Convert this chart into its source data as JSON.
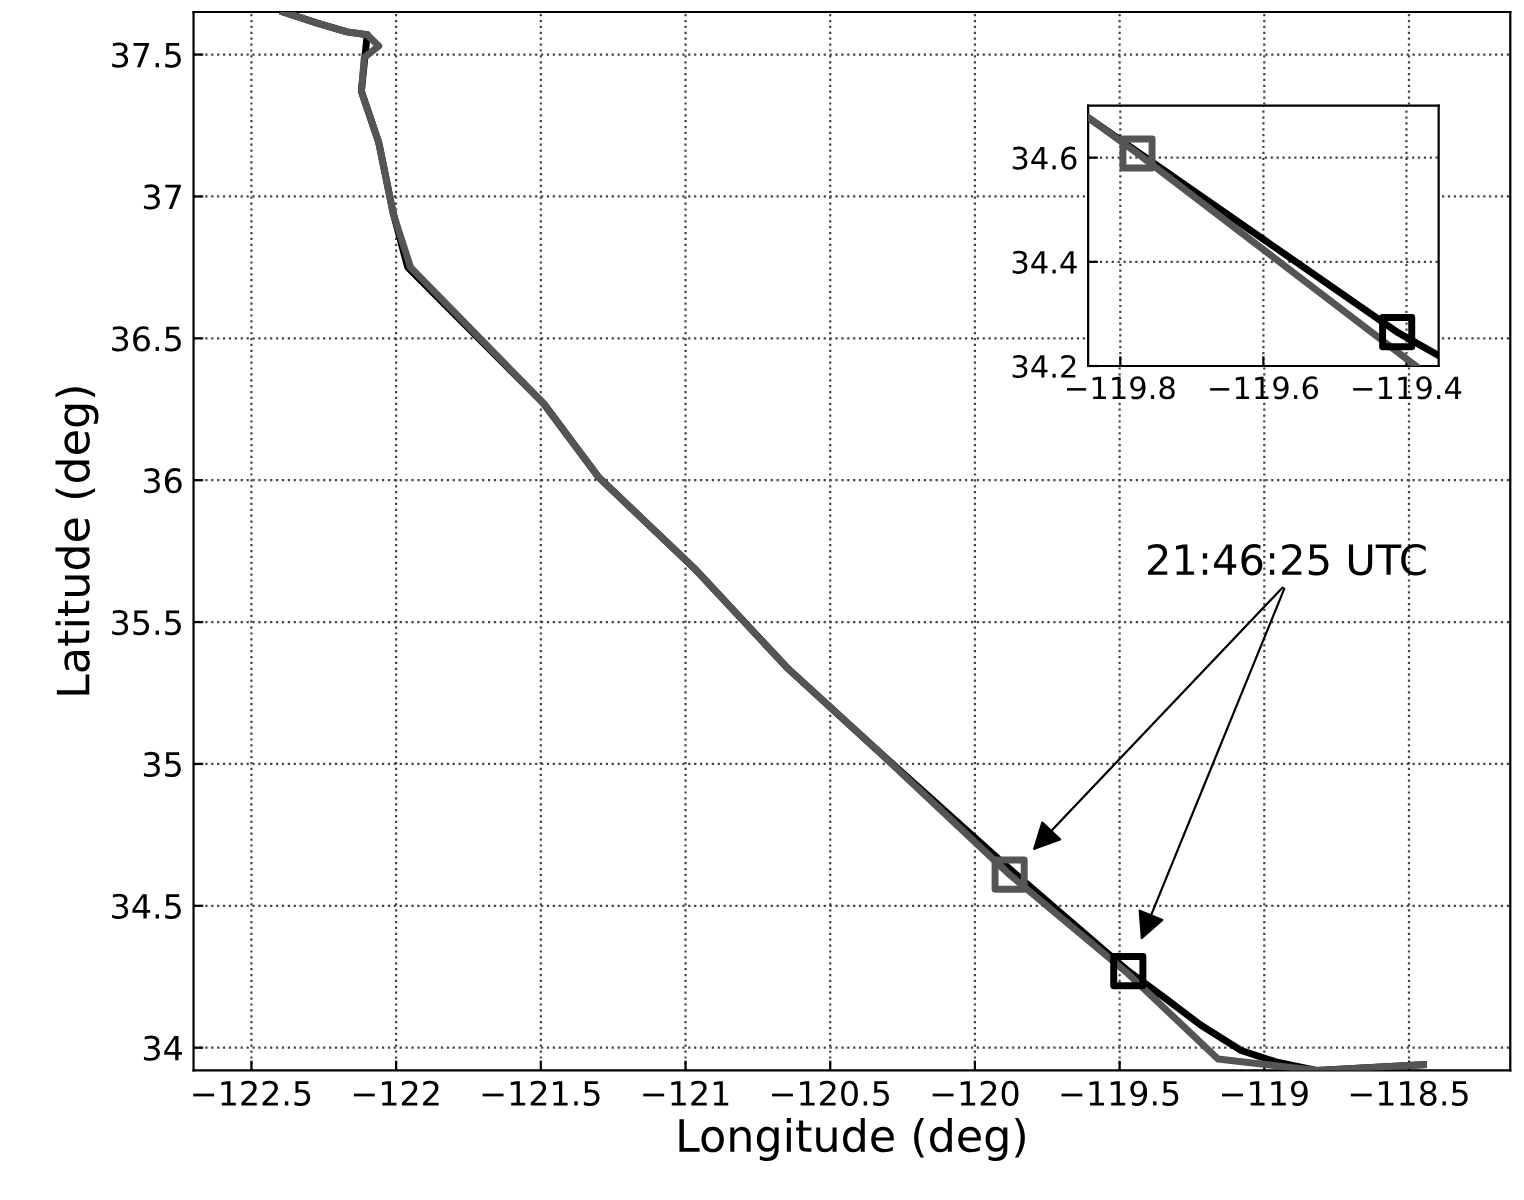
{
  "chart_data": [
    {
      "type": "line",
      "xlabel": "Longitude (deg)",
      "ylabel": "Latitude (deg)",
      "xlim": [
        -122.7,
        -118.15
      ],
      "ylim": [
        33.92,
        37.65
      ],
      "xticks": [
        {
          "value": -122.5,
          "label": "−122.5"
        },
        {
          "value": -122,
          "label": "−122"
        },
        {
          "value": -121.5,
          "label": "−121.5"
        },
        {
          "value": -121,
          "label": "−121"
        },
        {
          "value": -120.5,
          "label": "−120.5"
        },
        {
          "value": -120,
          "label": "−120"
        },
        {
          "value": -119.5,
          "label": "−119.5"
        },
        {
          "value": -119,
          "label": "−119"
        },
        {
          "value": -118.5,
          "label": "−118.5"
        }
      ],
      "yticks": [
        34,
        34.5,
        35,
        35.5,
        36,
        36.5,
        37,
        37.5
      ],
      "grid": true,
      "annotations": [
        "21:46:25 UTC"
      ],
      "series": [
        {
          "type": "line",
          "color": "#000000",
          "marker": "none",
          "x": [
            -122.39,
            -122.27,
            -122.17,
            -122.1,
            -122.12,
            -122.06,
            -122.01,
            -121.96,
            -121.49,
            -121.3,
            -120.97,
            -120.65,
            -120.35,
            -119.88,
            -119.47,
            -119.35,
            -119.22,
            -119.08,
            -118.96,
            -118.82,
            -118.45
          ],
          "values": [
            37.65,
            37.61,
            37.58,
            37.57,
            37.37,
            37.19,
            36.94,
            36.75,
            36.27,
            36.01,
            35.69,
            35.34,
            35.06,
            34.63,
            34.27,
            34.18,
            34.08,
            33.99,
            33.95,
            33.92,
            33.94
          ]
        },
        {
          "type": "line",
          "color": "#555555",
          "marker": "none",
          "x": [
            -122.39,
            -122.27,
            -122.17,
            -122.1,
            -122.06,
            -122.11,
            -122.12,
            -122.06,
            -122.01,
            -121.95,
            -121.49,
            -121.3,
            -120.97,
            -120.65,
            -120.35,
            -119.88,
            -119.47,
            -119.16,
            -118.82,
            -118.45
          ],
          "values": [
            37.65,
            37.61,
            37.58,
            37.57,
            37.53,
            37.49,
            37.37,
            37.19,
            36.94,
            36.75,
            36.27,
            36.01,
            35.69,
            35.34,
            35.06,
            34.61,
            34.26,
            33.96,
            33.92,
            33.94
          ]
        },
        {
          "type": "scatter",
          "color": "#555555",
          "marker": "square",
          "x": [
            -119.88
          ],
          "values": [
            34.61
          ]
        },
        {
          "type": "scatter",
          "color": "#000000",
          "marker": "square",
          "x": [
            -119.47
          ],
          "values": [
            34.27
          ]
        }
      ]
    },
    {
      "type": "line",
      "xlim": [
        -119.845,
        -119.355
      ],
      "ylim": [
        34.2,
        34.7
      ],
      "xticks": [
        {
          "value": -119.8,
          "label": "−119.8"
        },
        {
          "value": -119.6,
          "label": "−119.6"
        },
        {
          "value": -119.4,
          "label": "−119.4"
        }
      ],
      "yticks": [
        34.2,
        34.4,
        34.6
      ],
      "grid": true,
      "series": [
        {
          "type": "line",
          "color": "#000000",
          "marker": "none",
          "x": [
            -119.845,
            -119.413,
            -119.355
          ],
          "values": [
            34.677,
            34.265,
            34.22
          ]
        },
        {
          "type": "line",
          "color": "#555555",
          "marker": "none",
          "x": [
            -119.845,
            -119.776,
            -119.387
          ],
          "values": [
            34.677,
            34.608,
            34.2
          ]
        },
        {
          "type": "scatter",
          "color": "#555555",
          "marker": "square",
          "x": [
            -119.776
          ],
          "values": [
            34.608
          ]
        },
        {
          "type": "scatter",
          "color": "#000000",
          "marker": "square",
          "x": [
            -119.413
          ],
          "values": [
            34.265
          ]
        }
      ]
    }
  ]
}
